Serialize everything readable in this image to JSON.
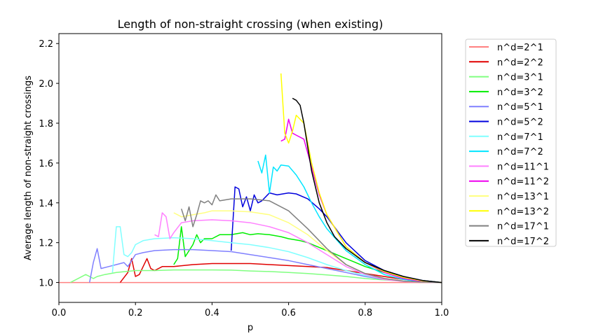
{
  "chart_data": {
    "type": "line",
    "title": "Length of non-straight crossing (when existing)",
    "xlabel": "p",
    "ylabel": "Average length of non-straight crossings",
    "xlim": [
      0.0,
      1.0
    ],
    "ylim": [
      0.9,
      2.25
    ],
    "xticks": [
      "0.0",
      "0.2",
      "0.4",
      "0.6",
      "0.8",
      "1.0"
    ],
    "yticks": [
      "1.0",
      "1.2",
      "1.4",
      "1.6",
      "1.8",
      "2.0",
      "2.2"
    ],
    "grid": false,
    "legend_position": "outside-right",
    "series": [
      {
        "name": "n^d=2^1",
        "color": "#ff8080",
        "x": [
          0.0,
          0.1,
          0.2,
          0.3,
          0.4,
          0.5,
          0.6,
          0.7,
          0.8,
          0.9,
          1.0
        ],
        "y": [
          1.0,
          1.0,
          1.0,
          1.0,
          1.0,
          1.0,
          1.0,
          1.0,
          1.0,
          1.0,
          1.0
        ]
      },
      {
        "name": "n^d=2^2",
        "color": "#e00000",
        "x": [
          0.16,
          0.18,
          0.19,
          0.2,
          0.21,
          0.23,
          0.24,
          0.25,
          0.27,
          0.3,
          0.35,
          0.4,
          0.45,
          0.5,
          0.55,
          0.6,
          0.65,
          0.7,
          0.75,
          0.8,
          0.85,
          0.9,
          0.95,
          1.0
        ],
        "y": [
          1.0,
          1.05,
          1.12,
          1.03,
          1.04,
          1.12,
          1.07,
          1.06,
          1.08,
          1.08,
          1.09,
          1.095,
          1.095,
          1.095,
          1.09,
          1.085,
          1.08,
          1.075,
          1.06,
          1.045,
          1.03,
          1.015,
          1.005,
          1.0
        ]
      },
      {
        "name": "n^d=3^1",
        "color": "#80ff80",
        "x": [
          0.03,
          0.05,
          0.07,
          0.08,
          0.09,
          0.1,
          0.12,
          0.15,
          0.2,
          0.25,
          0.3,
          0.35,
          0.4,
          0.45,
          0.5,
          0.55,
          0.6,
          0.65,
          0.7,
          0.75,
          0.8,
          0.85,
          0.9,
          0.95,
          1.0
        ],
        "y": [
          1.0,
          1.02,
          1.04,
          1.03,
          1.02,
          1.03,
          1.04,
          1.05,
          1.06,
          1.06,
          1.063,
          1.063,
          1.063,
          1.062,
          1.058,
          1.055,
          1.05,
          1.045,
          1.038,
          1.03,
          1.02,
          1.013,
          1.007,
          1.002,
          1.0
        ]
      },
      {
        "name": "n^d=3^2",
        "color": "#00ee00",
        "x": [
          0.3,
          0.31,
          0.32,
          0.33,
          0.35,
          0.36,
          0.37,
          0.38,
          0.4,
          0.42,
          0.45,
          0.48,
          0.5,
          0.52,
          0.55,
          0.58,
          0.6,
          0.63,
          0.65,
          0.7,
          0.75,
          0.8,
          0.85,
          0.9,
          0.95,
          1.0
        ],
        "y": [
          1.09,
          1.12,
          1.28,
          1.13,
          1.19,
          1.24,
          1.2,
          1.22,
          1.22,
          1.24,
          1.24,
          1.25,
          1.24,
          1.245,
          1.24,
          1.23,
          1.22,
          1.21,
          1.2,
          1.16,
          1.12,
          1.08,
          1.05,
          1.025,
          1.01,
          1.0
        ]
      },
      {
        "name": "n^d=5^1",
        "color": "#8080ff",
        "x": [
          0.08,
          0.09,
          0.1,
          0.11,
          0.13,
          0.15,
          0.17,
          0.18,
          0.2,
          0.22,
          0.25,
          0.3,
          0.35,
          0.4,
          0.45,
          0.5,
          0.55,
          0.6,
          0.65,
          0.7,
          0.75,
          0.8,
          0.85,
          0.9,
          0.95,
          1.0
        ],
        "y": [
          1.0,
          1.1,
          1.17,
          1.07,
          1.08,
          1.09,
          1.1,
          1.08,
          1.14,
          1.15,
          1.16,
          1.165,
          1.165,
          1.16,
          1.155,
          1.14,
          1.125,
          1.11,
          1.09,
          1.07,
          1.05,
          1.03,
          1.015,
          1.007,
          1.002,
          1.0
        ]
      },
      {
        "name": "n^d=5^2",
        "color": "#0000dd",
        "x": [
          0.45,
          0.46,
          0.47,
          0.48,
          0.49,
          0.5,
          0.51,
          0.52,
          0.53,
          0.55,
          0.57,
          0.6,
          0.62,
          0.65,
          0.68,
          0.7,
          0.75,
          0.8,
          0.85,
          0.9,
          0.95,
          1.0
        ],
        "y": [
          1.16,
          1.48,
          1.47,
          1.38,
          1.43,
          1.36,
          1.44,
          1.4,
          1.41,
          1.45,
          1.44,
          1.45,
          1.445,
          1.42,
          1.37,
          1.33,
          1.2,
          1.11,
          1.06,
          1.03,
          1.01,
          1.0
        ]
      },
      {
        "name": "n^d=7^1",
        "color": "#80ffff",
        "x": [
          0.14,
          0.15,
          0.16,
          0.17,
          0.18,
          0.19,
          0.2,
          0.22,
          0.25,
          0.3,
          0.35,
          0.4,
          0.45,
          0.5,
          0.55,
          0.6,
          0.65,
          0.7,
          0.75,
          0.8,
          0.85,
          0.9,
          0.95,
          1.0
        ],
        "y": [
          1.05,
          1.28,
          1.28,
          1.14,
          1.13,
          1.15,
          1.19,
          1.21,
          1.22,
          1.225,
          1.22,
          1.21,
          1.2,
          1.19,
          1.175,
          1.155,
          1.125,
          1.09,
          1.06,
          1.035,
          1.017,
          1.007,
          1.002,
          1.0
        ]
      },
      {
        "name": "n^d=7^2",
        "color": "#00e5ff",
        "x": [
          0.52,
          0.53,
          0.54,
          0.55,
          0.56,
          0.57,
          0.58,
          0.6,
          0.62,
          0.64,
          0.66,
          0.68,
          0.7,
          0.75,
          0.8,
          0.85,
          0.9,
          0.95,
          1.0
        ],
        "y": [
          1.61,
          1.55,
          1.64,
          1.45,
          1.58,
          1.56,
          1.59,
          1.585,
          1.54,
          1.48,
          1.4,
          1.33,
          1.27,
          1.16,
          1.09,
          1.04,
          1.015,
          1.004,
          1.0
        ]
      },
      {
        "name": "n^d=11^1",
        "color": "#ff80ff",
        "x": [
          0.25,
          0.26,
          0.27,
          0.28,
          0.29,
          0.3,
          0.32,
          0.35,
          0.4,
          0.45,
          0.5,
          0.55,
          0.6,
          0.65,
          0.7,
          0.75,
          0.8,
          0.85,
          0.9,
          0.95,
          1.0
        ],
        "y": [
          1.24,
          1.23,
          1.35,
          1.33,
          1.22,
          1.25,
          1.3,
          1.31,
          1.315,
          1.31,
          1.3,
          1.28,
          1.25,
          1.2,
          1.14,
          1.08,
          1.04,
          1.015,
          1.005,
          1.001,
          1.0
        ]
      },
      {
        "name": "n^d=11^2",
        "color": "#ee00ee",
        "x": [
          0.58,
          0.59,
          0.6,
          0.61,
          0.62,
          0.64,
          0.66,
          0.68,
          0.7,
          0.75,
          0.8,
          0.85,
          0.9,
          0.95,
          1.0
        ],
        "y": [
          1.71,
          1.72,
          1.82,
          1.75,
          1.74,
          1.72,
          1.58,
          1.44,
          1.34,
          1.18,
          1.1,
          1.05,
          1.02,
          1.005,
          1.0
        ]
      },
      {
        "name": "n^d=13^1",
        "color": "#ffff80",
        "x": [
          0.3,
          0.31,
          0.32,
          0.35,
          0.38,
          0.4,
          0.45,
          0.5,
          0.55,
          0.6,
          0.65,
          0.7,
          0.75,
          0.8,
          0.85,
          0.9,
          0.95,
          1.0
        ],
        "y": [
          1.35,
          1.34,
          1.33,
          1.34,
          1.35,
          1.36,
          1.36,
          1.355,
          1.34,
          1.3,
          1.24,
          1.16,
          1.09,
          1.045,
          1.02,
          1.007,
          1.002,
          1.0
        ]
      },
      {
        "name": "n^d=13^2",
        "color": "#ffff00",
        "x": [
          0.58,
          0.59,
          0.6,
          0.61,
          0.62,
          0.64,
          0.66,
          0.68,
          0.7,
          0.75,
          0.8,
          0.85,
          0.9,
          0.95,
          1.0
        ],
        "y": [
          2.05,
          1.75,
          1.7,
          1.76,
          1.84,
          1.8,
          1.6,
          1.45,
          1.34,
          1.18,
          1.1,
          1.055,
          1.025,
          1.008,
          1.0
        ]
      },
      {
        "name": "n^d=17^1",
        "color": "#808080",
        "x": [
          0.32,
          0.33,
          0.34,
          0.35,
          0.36,
          0.37,
          0.38,
          0.39,
          0.4,
          0.41,
          0.42,
          0.45,
          0.5,
          0.55,
          0.6,
          0.65,
          0.7,
          0.75,
          0.8,
          0.85,
          0.9,
          0.95,
          1.0
        ],
        "y": [
          1.37,
          1.31,
          1.38,
          1.28,
          1.34,
          1.41,
          1.4,
          1.41,
          1.39,
          1.44,
          1.41,
          1.42,
          1.42,
          1.41,
          1.36,
          1.27,
          1.17,
          1.09,
          1.045,
          1.02,
          1.007,
          1.002,
          1.0
        ]
      },
      {
        "name": "n^d=17^2",
        "color": "#000000",
        "x": [
          0.61,
          0.62,
          0.63,
          0.64,
          0.66,
          0.68,
          0.7,
          0.72,
          0.75,
          0.8,
          0.85,
          0.9,
          0.95,
          1.0
        ],
        "y": [
          1.925,
          1.915,
          1.89,
          1.8,
          1.56,
          1.4,
          1.3,
          1.23,
          1.17,
          1.1,
          1.06,
          1.03,
          1.01,
          1.0
        ]
      }
    ]
  }
}
